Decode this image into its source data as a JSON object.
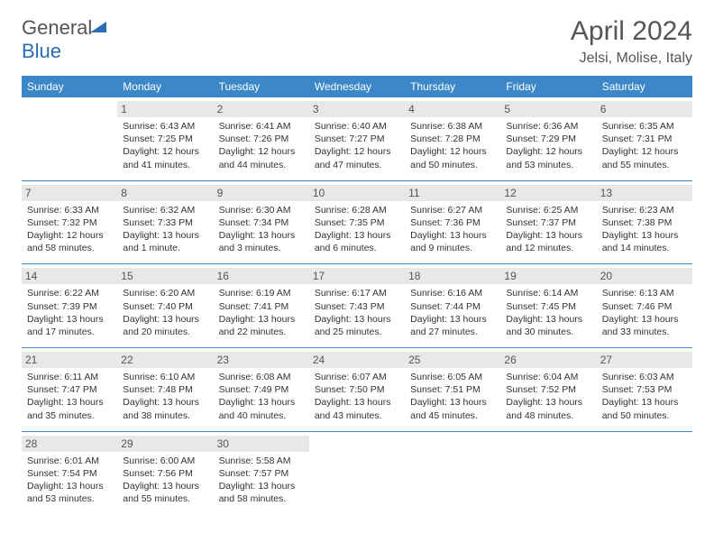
{
  "brand": {
    "part1": "General",
    "part2": "Blue"
  },
  "title": "April 2024",
  "location": "Jelsi, Molise, Italy",
  "colors": {
    "header_bg": "#3b87c8",
    "daynum_bg": "#e8e8e8",
    "text": "#333",
    "brand_blue": "#2a6fb5"
  },
  "day_names": [
    "Sunday",
    "Monday",
    "Tuesday",
    "Wednesday",
    "Thursday",
    "Friday",
    "Saturday"
  ],
  "weeks": [
    [
      null,
      {
        "n": "1",
        "sr": "Sunrise: 6:43 AM",
        "ss": "Sunset: 7:25 PM",
        "dl": "Daylight: 12 hours and 41 minutes."
      },
      {
        "n": "2",
        "sr": "Sunrise: 6:41 AM",
        "ss": "Sunset: 7:26 PM",
        "dl": "Daylight: 12 hours and 44 minutes."
      },
      {
        "n": "3",
        "sr": "Sunrise: 6:40 AM",
        "ss": "Sunset: 7:27 PM",
        "dl": "Daylight: 12 hours and 47 minutes."
      },
      {
        "n": "4",
        "sr": "Sunrise: 6:38 AM",
        "ss": "Sunset: 7:28 PM",
        "dl": "Daylight: 12 hours and 50 minutes."
      },
      {
        "n": "5",
        "sr": "Sunrise: 6:36 AM",
        "ss": "Sunset: 7:29 PM",
        "dl": "Daylight: 12 hours and 53 minutes."
      },
      {
        "n": "6",
        "sr": "Sunrise: 6:35 AM",
        "ss": "Sunset: 7:31 PM",
        "dl": "Daylight: 12 hours and 55 minutes."
      }
    ],
    [
      {
        "n": "7",
        "sr": "Sunrise: 6:33 AM",
        "ss": "Sunset: 7:32 PM",
        "dl": "Daylight: 12 hours and 58 minutes."
      },
      {
        "n": "8",
        "sr": "Sunrise: 6:32 AM",
        "ss": "Sunset: 7:33 PM",
        "dl": "Daylight: 13 hours and 1 minute."
      },
      {
        "n": "9",
        "sr": "Sunrise: 6:30 AM",
        "ss": "Sunset: 7:34 PM",
        "dl": "Daylight: 13 hours and 3 minutes."
      },
      {
        "n": "10",
        "sr": "Sunrise: 6:28 AM",
        "ss": "Sunset: 7:35 PM",
        "dl": "Daylight: 13 hours and 6 minutes."
      },
      {
        "n": "11",
        "sr": "Sunrise: 6:27 AM",
        "ss": "Sunset: 7:36 PM",
        "dl": "Daylight: 13 hours and 9 minutes."
      },
      {
        "n": "12",
        "sr": "Sunrise: 6:25 AM",
        "ss": "Sunset: 7:37 PM",
        "dl": "Daylight: 13 hours and 12 minutes."
      },
      {
        "n": "13",
        "sr": "Sunrise: 6:23 AM",
        "ss": "Sunset: 7:38 PM",
        "dl": "Daylight: 13 hours and 14 minutes."
      }
    ],
    [
      {
        "n": "14",
        "sr": "Sunrise: 6:22 AM",
        "ss": "Sunset: 7:39 PM",
        "dl": "Daylight: 13 hours and 17 minutes."
      },
      {
        "n": "15",
        "sr": "Sunrise: 6:20 AM",
        "ss": "Sunset: 7:40 PM",
        "dl": "Daylight: 13 hours and 20 minutes."
      },
      {
        "n": "16",
        "sr": "Sunrise: 6:19 AM",
        "ss": "Sunset: 7:41 PM",
        "dl": "Daylight: 13 hours and 22 minutes."
      },
      {
        "n": "17",
        "sr": "Sunrise: 6:17 AM",
        "ss": "Sunset: 7:43 PM",
        "dl": "Daylight: 13 hours and 25 minutes."
      },
      {
        "n": "18",
        "sr": "Sunrise: 6:16 AM",
        "ss": "Sunset: 7:44 PM",
        "dl": "Daylight: 13 hours and 27 minutes."
      },
      {
        "n": "19",
        "sr": "Sunrise: 6:14 AM",
        "ss": "Sunset: 7:45 PM",
        "dl": "Daylight: 13 hours and 30 minutes."
      },
      {
        "n": "20",
        "sr": "Sunrise: 6:13 AM",
        "ss": "Sunset: 7:46 PM",
        "dl": "Daylight: 13 hours and 33 minutes."
      }
    ],
    [
      {
        "n": "21",
        "sr": "Sunrise: 6:11 AM",
        "ss": "Sunset: 7:47 PM",
        "dl": "Daylight: 13 hours and 35 minutes."
      },
      {
        "n": "22",
        "sr": "Sunrise: 6:10 AM",
        "ss": "Sunset: 7:48 PM",
        "dl": "Daylight: 13 hours and 38 minutes."
      },
      {
        "n": "23",
        "sr": "Sunrise: 6:08 AM",
        "ss": "Sunset: 7:49 PM",
        "dl": "Daylight: 13 hours and 40 minutes."
      },
      {
        "n": "24",
        "sr": "Sunrise: 6:07 AM",
        "ss": "Sunset: 7:50 PM",
        "dl": "Daylight: 13 hours and 43 minutes."
      },
      {
        "n": "25",
        "sr": "Sunrise: 6:05 AM",
        "ss": "Sunset: 7:51 PM",
        "dl": "Daylight: 13 hours and 45 minutes."
      },
      {
        "n": "26",
        "sr": "Sunrise: 6:04 AM",
        "ss": "Sunset: 7:52 PM",
        "dl": "Daylight: 13 hours and 48 minutes."
      },
      {
        "n": "27",
        "sr": "Sunrise: 6:03 AM",
        "ss": "Sunset: 7:53 PM",
        "dl": "Daylight: 13 hours and 50 minutes."
      }
    ],
    [
      {
        "n": "28",
        "sr": "Sunrise: 6:01 AM",
        "ss": "Sunset: 7:54 PM",
        "dl": "Daylight: 13 hours and 53 minutes."
      },
      {
        "n": "29",
        "sr": "Sunrise: 6:00 AM",
        "ss": "Sunset: 7:56 PM",
        "dl": "Daylight: 13 hours and 55 minutes."
      },
      {
        "n": "30",
        "sr": "Sunrise: 5:58 AM",
        "ss": "Sunset: 7:57 PM",
        "dl": "Daylight: 13 hours and 58 minutes."
      },
      null,
      null,
      null,
      null
    ]
  ]
}
